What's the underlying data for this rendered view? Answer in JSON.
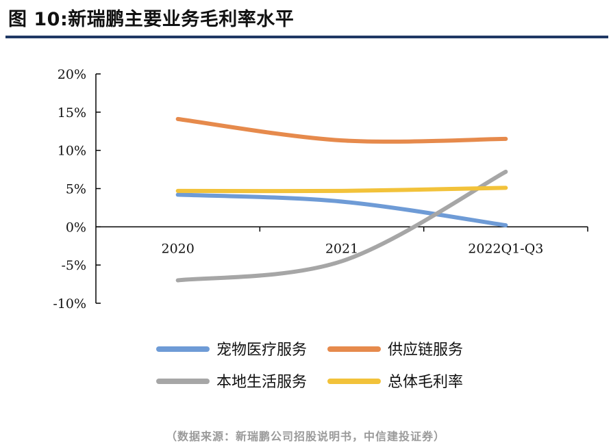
{
  "figure": {
    "title": "图 10:新瑞鹏主要业务毛利率水平",
    "source": "（数据来源：新瑞鹏公司招股说明书，中信建投证券）"
  },
  "chart_data": {
    "type": "line",
    "categories": [
      "2020",
      "2021",
      "2022Q1-Q3"
    ],
    "series": [
      {
        "name": "宠物医疗服务",
        "values": [
          4.2,
          3.3,
          0.2
        ],
        "color": "#6e9bd6"
      },
      {
        "name": "供应链服务",
        "values": [
          14.1,
          11.3,
          11.5
        ],
        "color": "#e68a4c"
      },
      {
        "name": "本地生活服务",
        "values": [
          -7.0,
          -4.5,
          7.2
        ],
        "color": "#a6a6a6"
      },
      {
        "name": "总体毛利率",
        "values": [
          4.7,
          4.7,
          5.1
        ],
        "color": "#f2c23a"
      }
    ],
    "ylim": [
      -10,
      20
    ],
    "yticks": [
      20,
      15,
      10,
      5,
      0,
      -5,
      -10
    ],
    "ytick_labels": [
      "20%",
      "15%",
      "10%",
      "5%",
      "0%",
      "-5%",
      "-10%"
    ],
    "xlabel": "",
    "ylabel": "",
    "grid": false,
    "legend_position": "bottom"
  }
}
